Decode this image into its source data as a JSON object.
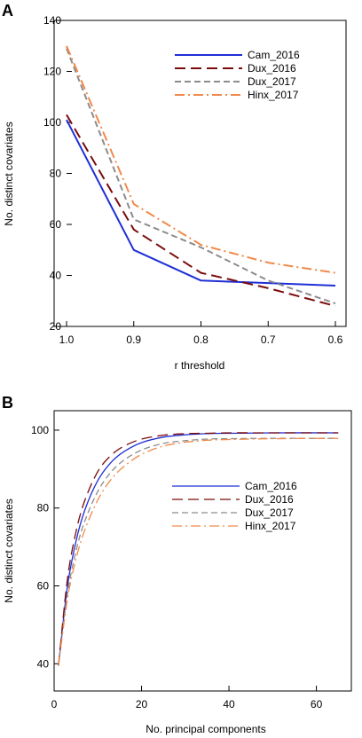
{
  "chart_data": [
    {
      "panel_label": "A",
      "type": "line",
      "xlabel": "r threshold",
      "ylabel": "No. distinct covariates",
      "x": [
        1.0,
        0.9,
        0.8,
        0.7,
        0.6
      ],
      "x_tick_labels": [
        "1.0",
        "0.9",
        "0.8",
        "0.7",
        "0.6"
      ],
      "xlim": [
        1.0,
        0.6
      ],
      "ylim": [
        20,
        140
      ],
      "y_ticks": [
        20,
        40,
        60,
        80,
        100,
        120,
        140
      ],
      "legend_position": "top-right",
      "grid": false,
      "series": [
        {
          "name": "Cam_2016",
          "color": "#1f2fd6",
          "dash": "solid",
          "values": [
            101,
            50,
            38,
            37,
            36
          ]
        },
        {
          "name": "Dux_2016",
          "color": "#7a0c0c",
          "dash": "dash",
          "values": [
            103,
            58,
            41,
            35,
            28
          ]
        },
        {
          "name": "Dux_2017",
          "color": "#8c8c8c",
          "dash": "shortdash",
          "values": [
            129,
            62,
            51,
            38,
            29
          ]
        },
        {
          "name": "Hinx_2017",
          "color": "#f08a4b",
          "dash": "dashdot",
          "values": [
            130,
            68,
            52,
            45,
            41
          ]
        }
      ]
    },
    {
      "panel_label": "B",
      "type": "line",
      "xlabel": "No. principal components",
      "ylabel": "No. distinct covariates",
      "xlim": [
        0,
        68
      ],
      "ylim": [
        33,
        105
      ],
      "x_ticks": [
        0,
        20,
        40,
        60
      ],
      "y_ticks": [
        40,
        60,
        80,
        100
      ],
      "legend_position": "center-right",
      "grid": false,
      "series": [
        {
          "name": "Cam_2016",
          "color": "#1f2fd6",
          "dash": "solid",
          "x": [
            1,
            3,
            5,
            7,
            10,
            13,
            16,
            20,
            25,
            30,
            35,
            40,
            50,
            65
          ],
          "values": [
            39.5,
            59.6,
            71.4,
            79.4,
            87.1,
            91.7,
            94.5,
            96.8,
            98.2,
            98.8,
            99.1,
            99.2,
            99.3,
            99.3
          ]
        },
        {
          "name": "Dux_2016",
          "color": "#7a0c0c",
          "dash": "dash",
          "x": [
            1,
            3,
            5,
            7,
            10,
            13,
            16,
            20,
            25,
            30,
            35,
            40,
            50,
            65
          ],
          "values": [
            39.5,
            61.4,
            73.8,
            81.9,
            89.4,
            93.5,
            95.9,
            97.7,
            98.7,
            99.1,
            99.2,
            99.3,
            99.3,
            99.3
          ]
        },
        {
          "name": "Dux_2017",
          "color": "#8c8c8c",
          "dash": "shortdash",
          "x": [
            1,
            3,
            5,
            7,
            10,
            13,
            16,
            20,
            25,
            30,
            35,
            40,
            50,
            65
          ],
          "values": [
            39.5,
            57.7,
            68.9,
            76.6,
            84.3,
            89.2,
            92.3,
            94.9,
            96.6,
            97.3,
            97.7,
            97.8,
            97.9,
            97.9
          ]
        },
        {
          "name": "Hinx_2017",
          "color": "#f08a4b",
          "dash": "dashdot",
          "x": [
            1,
            3,
            5,
            7,
            10,
            13,
            16,
            20,
            25,
            30,
            35,
            40,
            50,
            65
          ],
          "values": [
            39.5,
            56.3,
            66.9,
            74.3,
            82.1,
            87.3,
            90.7,
            93.8,
            95.9,
            96.9,
            97.4,
            97.6,
            97.8,
            97.9
          ]
        }
      ]
    }
  ]
}
